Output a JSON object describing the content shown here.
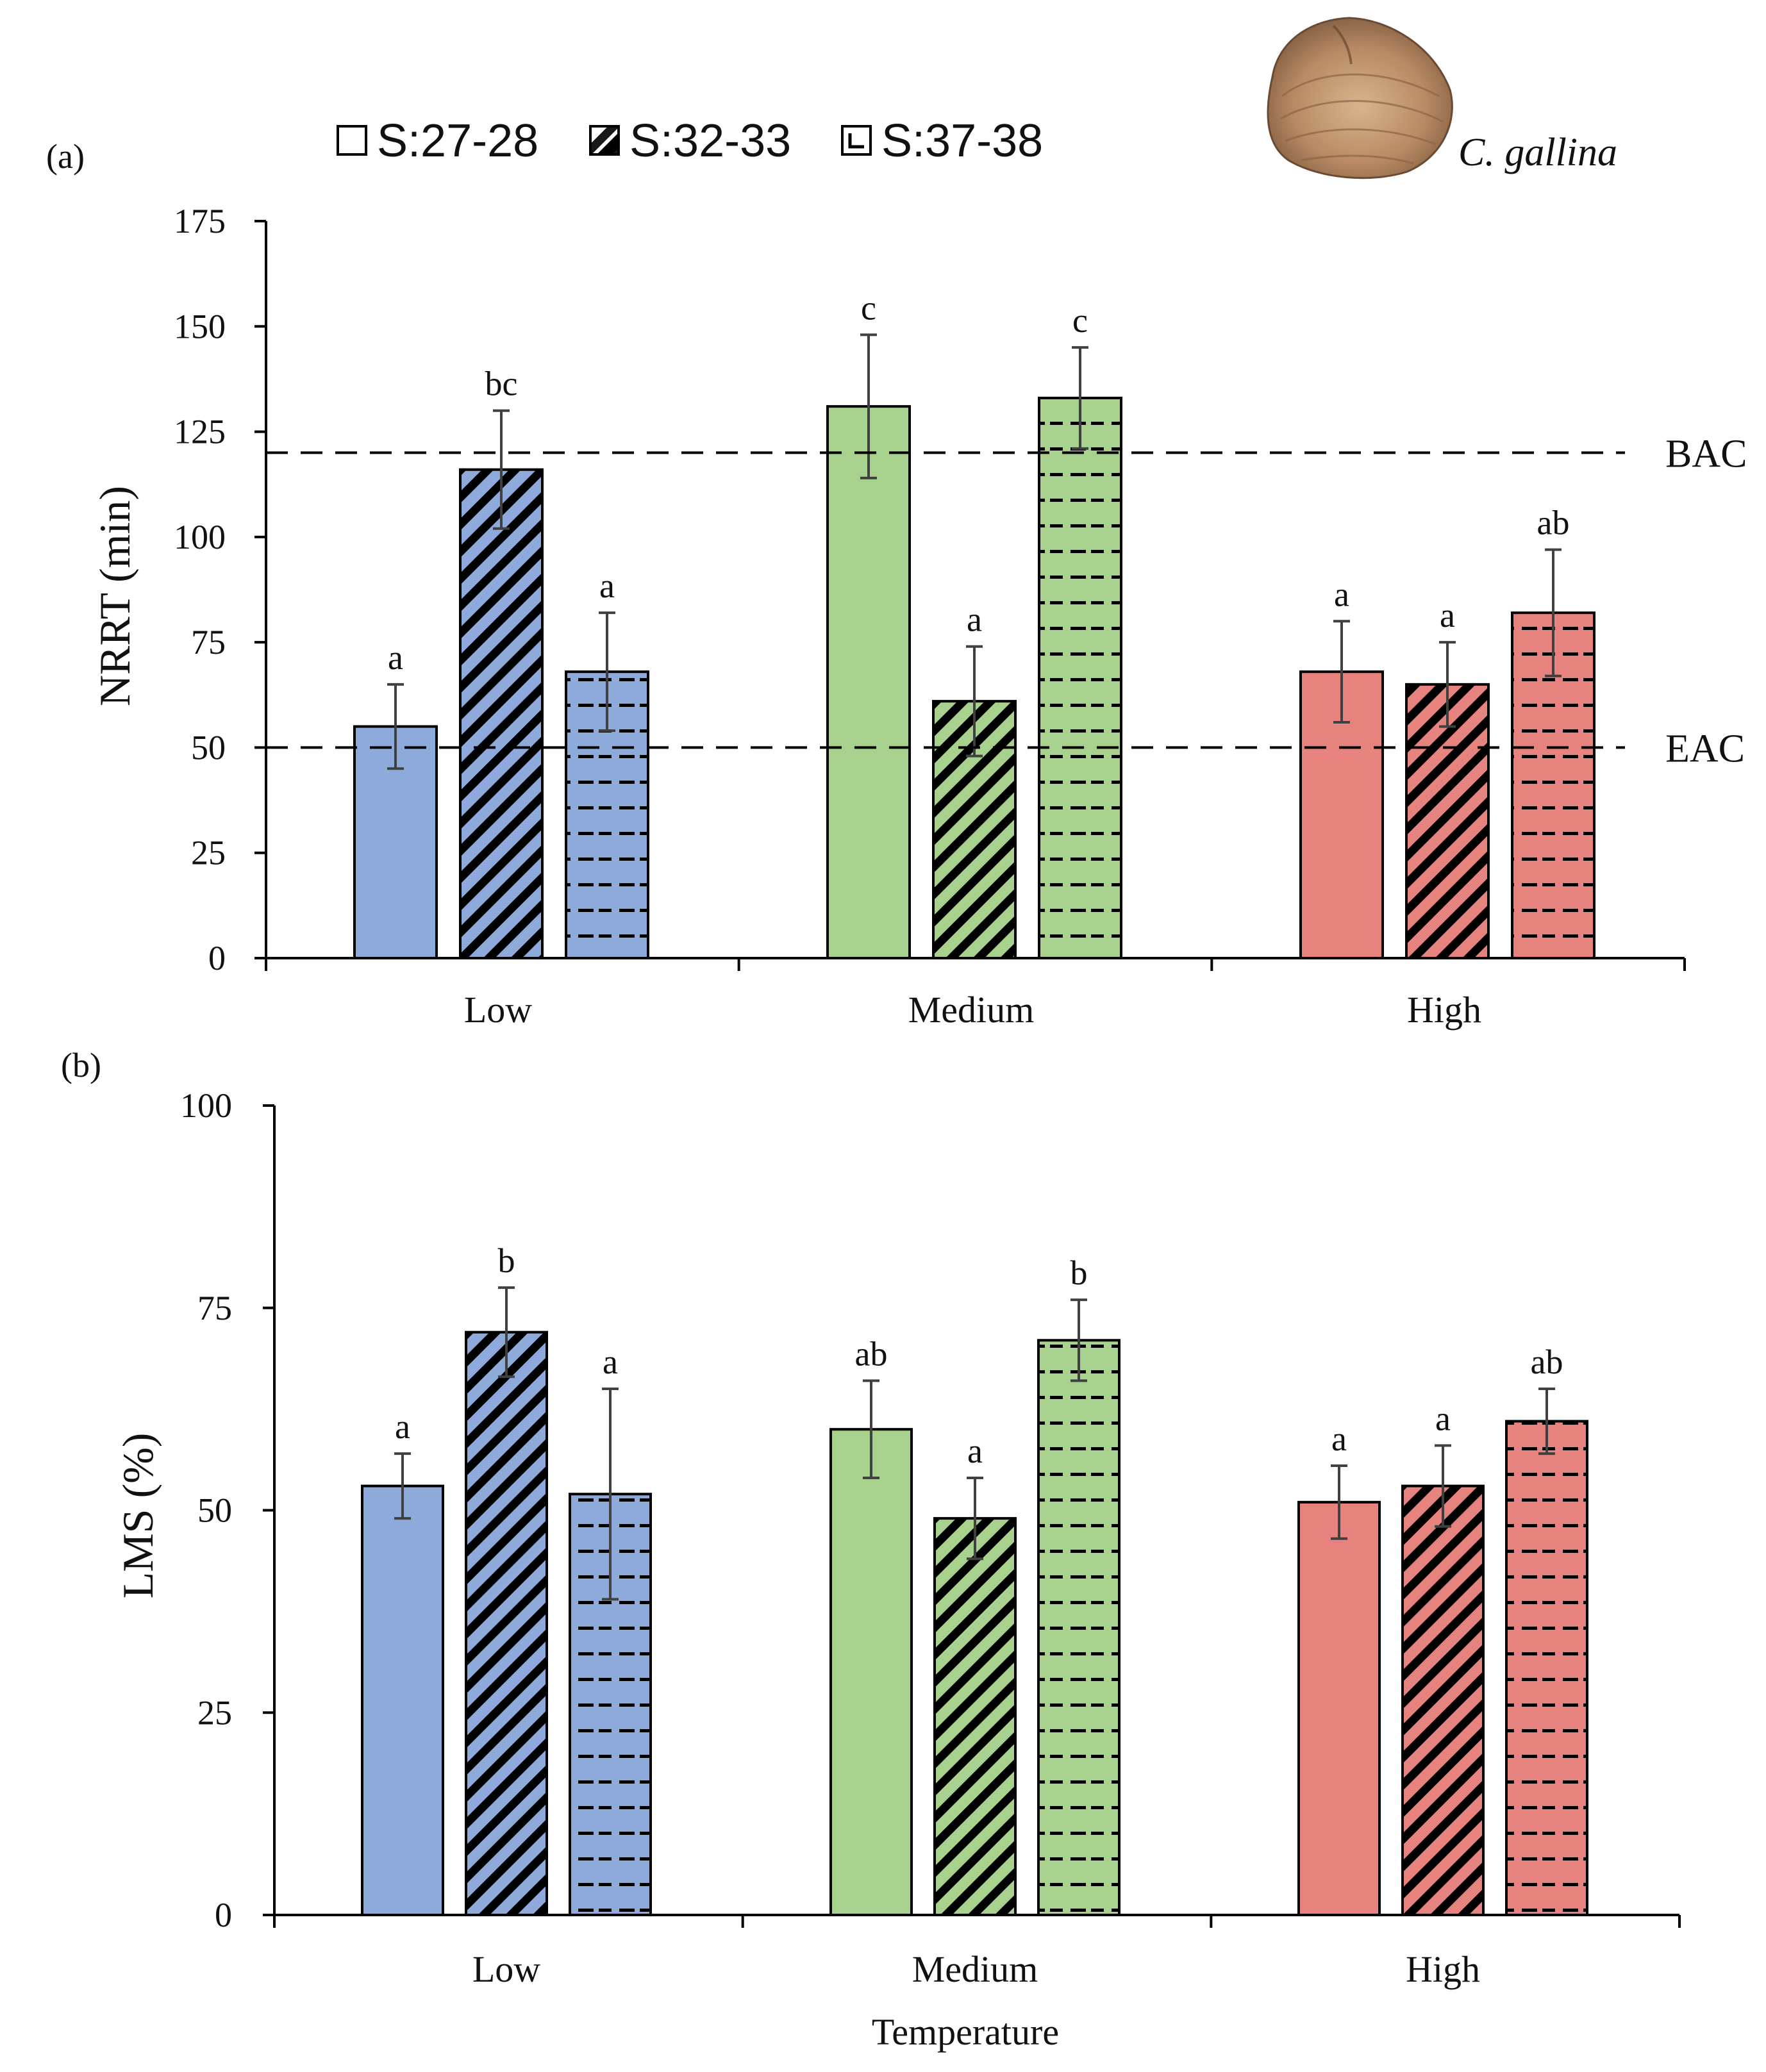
{
  "colors": {
    "low": "#8eaadb",
    "medium": "#a9d18e",
    "high": "#e6837f",
    "edge": "#000000",
    "error": "#404040"
  },
  "legend": [
    {
      "label": "S:27-28",
      "pattern": "solid"
    },
    {
      "label": "S:32-33",
      "pattern": "diagonal"
    },
    {
      "label": "S:37-38",
      "pattern": "dashes"
    }
  ],
  "species_label": "C. gallina",
  "species_icon": "clam-shell-icon",
  "chart_data": [
    {
      "panel": "(a)",
      "type": "bar",
      "ylabel": "NRRT (min)",
      "xlabel": "",
      "ylim": [
        0,
        175
      ],
      "yticks": [
        0,
        25,
        50,
        75,
        100,
        125,
        150,
        175
      ],
      "categories": [
        "Low",
        "Medium",
        "High"
      ],
      "series": [
        {
          "name": "S:27-28",
          "values": [
            55,
            131,
            68
          ],
          "errors": [
            10,
            17,
            12
          ],
          "sig": [
            "a",
            "c",
            "a"
          ]
        },
        {
          "name": "S:32-33",
          "values": [
            116,
            61,
            65
          ],
          "errors": [
            14,
            13,
            10
          ],
          "sig": [
            "bc",
            "a",
            "a"
          ]
        },
        {
          "name": "S:37-38",
          "values": [
            68,
            133,
            82
          ],
          "errors": [
            14,
            12,
            15
          ],
          "sig": [
            "a",
            "c",
            "ab"
          ]
        }
      ],
      "reference_lines": [
        {
          "label": "BAC",
          "value": 120
        },
        {
          "label": "EAC",
          "value": 50
        }
      ]
    },
    {
      "panel": "(b)",
      "type": "bar",
      "ylabel": "LMS (%)",
      "xlabel": "Temperature",
      "ylim": [
        0,
        100
      ],
      "yticks": [
        0,
        25,
        50,
        75,
        100
      ],
      "categories": [
        "Low",
        "Medium",
        "High"
      ],
      "series": [
        {
          "name": "S:27-28",
          "values": [
            53,
            60,
            51
          ],
          "errors": [
            4,
            6,
            4.5
          ],
          "sig": [
            "a",
            "ab",
            "a"
          ]
        },
        {
          "name": "S:32-33",
          "values": [
            72,
            49,
            53
          ],
          "errors": [
            5.5,
            5,
            5
          ],
          "sig": [
            "b",
            "a",
            "a"
          ]
        },
        {
          "name": "S:37-38",
          "values": [
            52,
            71,
            61
          ],
          "errors": [
            13,
            5,
            4
          ],
          "sig": [
            "a",
            "b",
            "ab"
          ]
        }
      ],
      "reference_lines": []
    }
  ]
}
